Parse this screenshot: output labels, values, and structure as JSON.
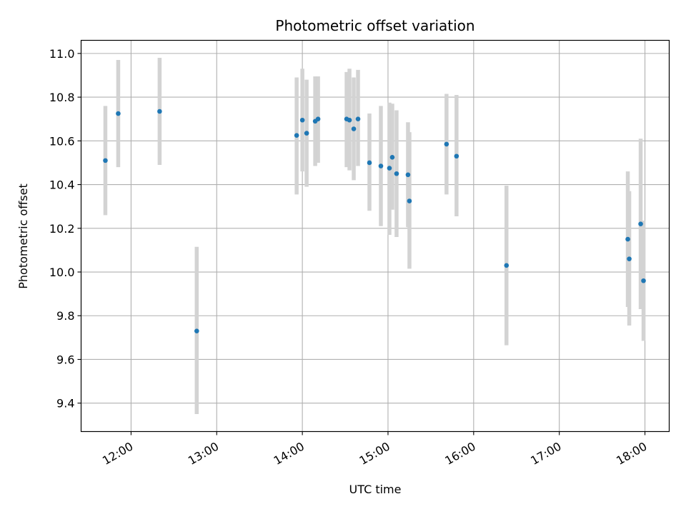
{
  "chart_data": {
    "type": "scatter",
    "title": "Photometric offset variation",
    "xlabel": "UTC time",
    "ylabel": "Photometric offset",
    "x_tick_labels": [
      "12:00",
      "13:00",
      "14:00",
      "15:00",
      "16:00",
      "17:00",
      "18:00"
    ],
    "y_tick_labels": [
      "9.4",
      "9.6",
      "9.8",
      "10.0",
      "10.2",
      "10.4",
      "10.6",
      "10.8",
      "11.0"
    ],
    "y_ticks": [
      9.4,
      9.6,
      9.8,
      10.0,
      10.2,
      10.4,
      10.6,
      10.8,
      11.0
    ],
    "xlim": [
      "11:25",
      "18:17"
    ],
    "ylim": [
      9.27,
      11.06
    ],
    "grid": true,
    "marker_color": "#1f77b4",
    "errorbar_color": "#d3d3d3",
    "points": [
      {
        "x": "11:42",
        "y": 10.51,
        "low": 10.26,
        "high": 10.76
      },
      {
        "x": "11:51",
        "y": 10.725,
        "low": 10.48,
        "high": 10.97
      },
      {
        "x": "12:20",
        "y": 10.735,
        "low": 10.49,
        "high": 10.98
      },
      {
        "x": "12:46",
        "y": 9.73,
        "low": 9.35,
        "high": 10.115
      },
      {
        "x": "13:56",
        "y": 10.625,
        "low": 10.355,
        "high": 10.89
      },
      {
        "x": "14:00",
        "y": 10.695,
        "low": 10.46,
        "high": 10.93
      },
      {
        "x": "14:03",
        "y": 10.635,
        "low": 10.39,
        "high": 10.88
      },
      {
        "x": "14:09",
        "y": 10.69,
        "low": 10.485,
        "high": 10.895
      },
      {
        "x": "14:11",
        "y": 10.7,
        "low": 10.5,
        "high": 10.895
      },
      {
        "x": "14:31",
        "y": 10.7,
        "low": 10.48,
        "high": 10.915
      },
      {
        "x": "14:33",
        "y": 10.695,
        "low": 10.465,
        "high": 10.93
      },
      {
        "x": "14:36",
        "y": 10.655,
        "low": 10.42,
        "high": 10.89
      },
      {
        "x": "14:39",
        "y": 10.7,
        "low": 10.485,
        "high": 10.925
      },
      {
        "x": "14:47",
        "y": 10.5,
        "low": 10.28,
        "high": 10.725
      },
      {
        "x": "14:55",
        "y": 10.485,
        "low": 10.21,
        "high": 10.76
      },
      {
        "x": "15:01",
        "y": 10.475,
        "low": 10.17,
        "high": 10.775
      },
      {
        "x": "15:03",
        "y": 10.525,
        "low": 10.285,
        "high": 10.77
      },
      {
        "x": "15:06",
        "y": 10.45,
        "low": 10.16,
        "high": 10.74
      },
      {
        "x": "15:14",
        "y": 10.445,
        "low": 10.205,
        "high": 10.685
      },
      {
        "x": "15:15",
        "y": 10.325,
        "low": 10.015,
        "high": 10.64
      },
      {
        "x": "15:41",
        "y": 10.585,
        "low": 10.355,
        "high": 10.815
      },
      {
        "x": "15:48",
        "y": 10.53,
        "low": 10.255,
        "high": 10.81
      },
      {
        "x": "16:23",
        "y": 10.03,
        "low": 9.665,
        "high": 10.395
      },
      {
        "x": "17:48",
        "y": 10.15,
        "low": 9.84,
        "high": 10.46
      },
      {
        "x": "17:49",
        "y": 10.06,
        "low": 9.755,
        "high": 10.37
      },
      {
        "x": "17:57",
        "y": 10.22,
        "low": 9.83,
        "high": 10.61
      },
      {
        "x": "17:59",
        "y": 9.96,
        "low": 9.685,
        "high": 10.235
      }
    ]
  }
}
